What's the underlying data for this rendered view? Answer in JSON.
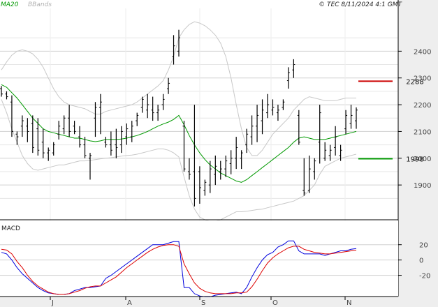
{
  "header": {
    "ma_label": "MA20",
    "bb_label": "BBands",
    "copyright": "© TEC 8/11/2024 4:1 GMT"
  },
  "macd_panel": {
    "title": "MACD"
  },
  "colors": {
    "ma": "#009900",
    "bbands": "#c8c8c8",
    "price": "#000000",
    "resistance": "#cc0000",
    "support": "#009900",
    "macd": "#0000dd",
    "signal": "#dd0000",
    "grid": "#d0d0d0",
    "axis_panel": "#eeeeee"
  },
  "chart_data": [
    {
      "type": "line",
      "title": "",
      "xlabel": "",
      "ylabel": "",
      "ylim": [
        1770,
        2560
      ],
      "y_ticks": [
        "1900",
        "2000",
        "2100",
        "2200",
        "2300",
        "2400"
      ],
      "x_tick_labels": [
        "J",
        "A",
        "S",
        "O",
        "N"
      ],
      "price_bars": {
        "high": [
          2270,
          2250,
          2235,
          2100,
          2160,
          2150,
          2160,
          2150,
          2110,
          2040,
          2060,
          2140,
          2160,
          2200,
          2140,
          2120,
          2080,
          2020,
          2210,
          2240,
          2080,
          2100,
          2110,
          2120,
          2130,
          2140,
          2170,
          2230,
          2240,
          2230,
          2200,
          2240,
          2300,
          2460,
          2480,
          2140,
          2000,
          2200,
          1970,
          1920,
          1990,
          2010,
          1990,
          2010,
          2030,
          2080,
          2030,
          2110,
          2160,
          2200,
          2220,
          2240,
          2220,
          2200,
          2220,
          2340,
          2370,
          2180,
          2000,
          2010,
          2000,
          2200,
          2060,
          2050,
          2120,
          2050,
          2180,
          2200,
          2190
        ],
        "low": [
          2230,
          2220,
          2080,
          2050,
          2080,
          2060,
          2020,
          2010,
          2000,
          1990,
          2010,
          2070,
          2090,
          2080,
          2090,
          2040,
          2000,
          1920,
          2080,
          2090,
          2040,
          2010,
          2000,
          2020,
          2050,
          2060,
          2120,
          2170,
          2150,
          2140,
          2140,
          2180,
          2240,
          2350,
          2380,
          1950,
          1920,
          1820,
          1830,
          1860,
          1870,
          1900,
          1920,
          1930,
          1940,
          1960,
          1960,
          2020,
          2050,
          2060,
          2090,
          2150,
          2160,
          2140,
          2180,
          2260,
          2300,
          2050,
          1860,
          1870,
          1920,
          1980,
          1990,
          1990,
          2010,
          1990,
          2090,
          2110,
          2110
        ],
        "open": [
          2260,
          2240,
          2210,
          2090,
          2120,
          2120,
          2130,
          2110,
          2060,
          2020,
          2020,
          2090,
          2110,
          2150,
          2120,
          2080,
          2050,
          2000,
          2150,
          2190,
          2060,
          2050,
          2050,
          2050,
          2080,
          2080,
          2140,
          2190,
          2180,
          2180,
          2170,
          2200,
          2260,
          2380,
          2400,
          2120,
          1950,
          1950,
          1950,
          1880,
          1900,
          1940,
          1950,
          1960,
          1980,
          2000,
          2000,
          2050,
          2080,
          2120,
          2140,
          2170,
          2180,
          2170,
          2190,
          2290,
          2330,
          2160,
          1880,
          1880,
          1950,
          2060,
          2000,
          2010,
          2040,
          2010,
          2110,
          2130,
          2140
        ],
        "close": [
          2240,
          2230,
          2100,
          2080,
          2140,
          2100,
          2040,
          2030,
          2020,
          2030,
          2050,
          2120,
          2150,
          2100,
          2100,
          2050,
          2010,
          2010,
          2190,
          2210,
          2050,
          2030,
          2040,
          2100,
          2110,
          2120,
          2160,
          2220,
          2200,
          2170,
          2180,
          2220,
          2280,
          2420,
          2450,
          1960,
          1940,
          1850,
          1890,
          1910,
          1960,
          1970,
          1960,
          1990,
          2000,
          2040,
          2020,
          2090,
          2120,
          2160,
          2180,
          2200,
          2190,
          2180,
          2210,
          2320,
          2350,
          2060,
          1870,
          1960,
          1990,
          2170,
          2030,
          2030,
          2080,
          2030,
          2160,
          2160,
          2180
        ]
      },
      "series": [
        {
          "name": "MA20",
          "values": [
            2275,
            2265,
            2245,
            2225,
            2200,
            2175,
            2150,
            2130,
            2110,
            2100,
            2095,
            2090,
            2085,
            2080,
            2075,
            2075,
            2070,
            2065,
            2062,
            2065,
            2070,
            2070,
            2070,
            2072,
            2075,
            2080,
            2085,
            2092,
            2100,
            2110,
            2120,
            2128,
            2135,
            2145,
            2160,
            2125,
            2085,
            2050,
            2020,
            1995,
            1975,
            1960,
            1945,
            1935,
            1925,
            1915,
            1910,
            1920,
            1935,
            1950,
            1965,
            1980,
            1995,
            2010,
            2025,
            2040,
            2060,
            2075,
            2080,
            2075,
            2070,
            2070,
            2070,
            2075,
            2080,
            2085,
            2090,
            2095,
            2100
          ]
        },
        {
          "name": "BBands upper",
          "values": [
            2330,
            2360,
            2385,
            2400,
            2405,
            2400,
            2390,
            2370,
            2340,
            2300,
            2260,
            2230,
            2210,
            2200,
            2195,
            2190,
            2185,
            2175,
            2165,
            2165,
            2175,
            2180,
            2185,
            2190,
            2195,
            2200,
            2210,
            2225,
            2240,
            2255,
            2270,
            2290,
            2330,
            2380,
            2450,
            2480,
            2500,
            2510,
            2505,
            2495,
            2480,
            2460,
            2430,
            2380,
            2300,
            2200,
            2110,
            2040,
            2010,
            2010,
            2030,
            2060,
            2090,
            2110,
            2130,
            2150,
            2180,
            2200,
            2220,
            2230,
            2225,
            2220,
            2215,
            2215,
            2215,
            2220,
            2225,
            2225,
            2225
          ]
        },
        {
          "name": "BBands lower",
          "values": [
            2220,
            2170,
            2110,
            2060,
            2010,
            1980,
            1960,
            1955,
            1960,
            1965,
            1970,
            1975,
            1975,
            1980,
            1985,
            1990,
            1990,
            1992,
            1995,
            1998,
            2000,
            2002,
            2005,
            2008,
            2010,
            2012,
            2015,
            2020,
            2025,
            2030,
            2035,
            2035,
            2030,
            2020,
            2005,
            1930,
            1860,
            1810,
            1780,
            1770,
            1765,
            1765,
            1770,
            1780,
            1790,
            1800,
            1800,
            1802,
            1805,
            1808,
            1810,
            1815,
            1820,
            1825,
            1830,
            1835,
            1840,
            1850,
            1860,
            1880,
            1900,
            1940,
            1970,
            1980,
            1990,
            2000,
            2005,
            2010,
            2015
          ]
        }
      ],
      "levels": [
        {
          "name": "resistance",
          "value": 2288,
          "label": "2288"
        },
        {
          "name": "support",
          "value": 1998,
          "label": "1998"
        }
      ]
    },
    {
      "type": "line",
      "title": "MACD",
      "ylim": [
        -45,
        48
      ],
      "y_ticks": [
        "0",
        "20",
        "-20"
      ],
      "series": [
        {
          "name": "MACD",
          "values": [
            10,
            8,
            0,
            -10,
            -18,
            -24,
            -30,
            -36,
            -40,
            -43,
            -44,
            -45,
            -45,
            -44,
            -40,
            -38,
            -36,
            -36,
            -35,
            -34,
            -24,
            -20,
            -15,
            -10,
            -5,
            0,
            5,
            10,
            15,
            20,
            20,
            20,
            22,
            24,
            24,
            -36,
            -36,
            -44,
            -47,
            -48,
            -48,
            -46,
            -45,
            -44,
            -43,
            -42,
            -44,
            -36,
            -22,
            -10,
            0,
            7,
            10,
            17,
            20,
            25,
            25,
            12,
            8,
            8,
            8,
            8,
            6,
            8,
            10,
            12,
            12,
            14,
            15
          ],
          "x": [
            0,
            1,
            2,
            3,
            4,
            5,
            6,
            7,
            8,
            9,
            10,
            11,
            12,
            13,
            14,
            15,
            16,
            17,
            18,
            19,
            20,
            21,
            22,
            23,
            24,
            25,
            26,
            27,
            28,
            29,
            30,
            31,
            32,
            33,
            34,
            35,
            36,
            37,
            38,
            39,
            40,
            41,
            42,
            43,
            44,
            45,
            46,
            47,
            48,
            49,
            50,
            51,
            52,
            53,
            54,
            55,
            56,
            57,
            58,
            59,
            60,
            61,
            62,
            63,
            64,
            65,
            66,
            67,
            68
          ]
        },
        {
          "name": "Signal",
          "values": [
            14,
            13,
            8,
            -2,
            -10,
            -20,
            -28,
            -34,
            -38,
            -42,
            -44,
            -45,
            -45,
            -44,
            -42,
            -40,
            -37,
            -35,
            -34,
            -34,
            -30,
            -26,
            -22,
            -16,
            -10,
            -5,
            0,
            5,
            10,
            14,
            17,
            19,
            20,
            20,
            18,
            -5,
            -18,
            -30,
            -37,
            -41,
            -43,
            -44,
            -44,
            -44,
            -44,
            -43,
            -43,
            -42,
            -35,
            -25,
            -14,
            -4,
            3,
            8,
            12,
            16,
            18,
            18,
            14,
            12,
            10,
            9,
            8,
            8,
            9,
            10,
            11,
            12,
            13
          ],
          "x": [
            0,
            1,
            2,
            3,
            4,
            5,
            6,
            7,
            8,
            9,
            10,
            11,
            12,
            13,
            14,
            15,
            16,
            17,
            18,
            19,
            20,
            21,
            22,
            23,
            24,
            25,
            26,
            27,
            28,
            29,
            30,
            31,
            32,
            33,
            34,
            35,
            36,
            37,
            38,
            39,
            40,
            41,
            42,
            43,
            44,
            45,
            46,
            47,
            48,
            49,
            50,
            51,
            52,
            53,
            54,
            55,
            56,
            57,
            58,
            59,
            60,
            61,
            62,
            63,
            64,
            65,
            66,
            67,
            68
          ]
        }
      ]
    }
  ]
}
